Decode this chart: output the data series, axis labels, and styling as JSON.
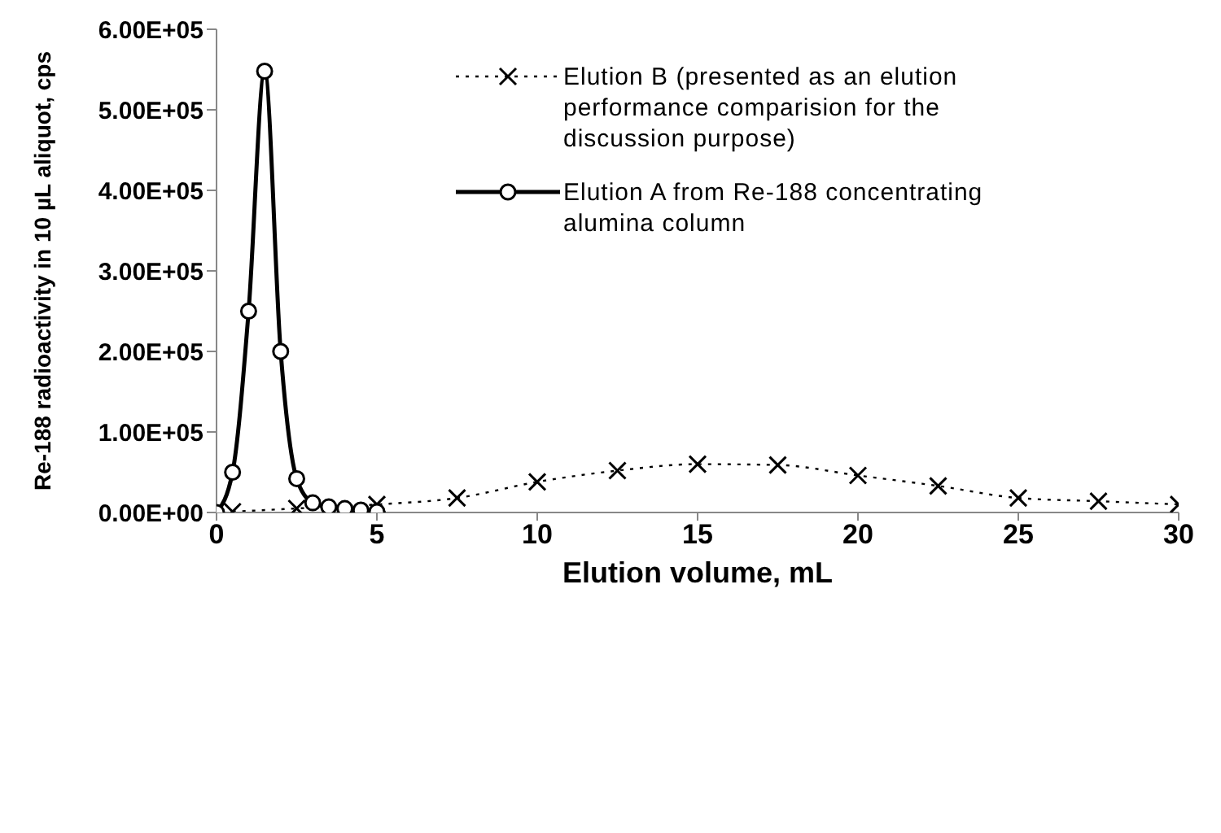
{
  "chart_data": {
    "type": "line",
    "xlabel": "Elution volume, mL",
    "ylabel": "Re-188 radioactivity in 10 µL aliquot, cps",
    "xlim": [
      0,
      30
    ],
    "xticks": [
      0,
      5,
      10,
      15,
      20,
      25,
      30
    ],
    "ylim": [
      0,
      600000
    ],
    "yticks": [
      {
        "value": 0,
        "label": "0.00E+00"
      },
      {
        "value": 100000,
        "label": "1.00E+05"
      },
      {
        "value": 200000,
        "label": "2.00E+05"
      },
      {
        "value": 300000,
        "label": "3.00E+05"
      },
      {
        "value": 400000,
        "label": "4.00E+05"
      },
      {
        "value": 500000,
        "label": "5.00E+05"
      },
      {
        "value": 600000,
        "label": "6.00E+05"
      }
    ],
    "legend": "top right",
    "series": [
      {
        "name": "Elution B (presented as an elution performance comparision for the discussion purpose)",
        "color": "#000000",
        "marker": "cross",
        "line_style": "dotted",
        "x": [
          0.5,
          2.5,
          5,
          7.5,
          10,
          12.5,
          15,
          17.5,
          20,
          22.5,
          25,
          27.5,
          30
        ],
        "values": [
          1000,
          5000,
          10000,
          18000,
          38000,
          52000,
          60000,
          59000,
          46000,
          33000,
          18000,
          14000,
          10000
        ]
      },
      {
        "name": "Elution A from Re-188 concentrating alumina column",
        "color": "#000000",
        "marker": "circle",
        "line_style": "solid",
        "x": [
          0,
          0.5,
          1,
          1.5,
          2,
          2.5,
          3,
          3.5,
          4,
          4.5,
          5
        ],
        "values": [
          0,
          50000,
          250000,
          548000,
          200000,
          42000,
          12000,
          7000,
          5000,
          3000,
          1000
        ]
      }
    ]
  }
}
